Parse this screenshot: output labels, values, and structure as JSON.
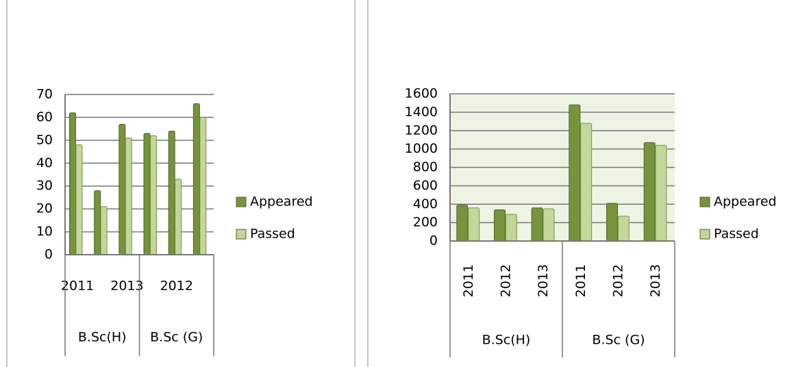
{
  "chart_data": [
    {
      "type": "bar",
      "categories": [
        "2011",
        null,
        "2013",
        null,
        "2012",
        null
      ],
      "groups": [
        "B.Sc(H)",
        "B.Sc (G)"
      ],
      "series": [
        {
          "name": "Appeared",
          "color": "#77933c",
          "values": [
            62,
            28,
            57,
            53,
            54,
            66
          ]
        },
        {
          "name": "Passed",
          "color": "#c3d69b",
          "values": [
            48,
            21,
            51,
            52,
            33,
            60
          ]
        }
      ],
      "ylim": [
        0,
        70
      ],
      "yticks": [
        0,
        10,
        20,
        30,
        40,
        50,
        60,
        70
      ],
      "grid": true,
      "legend": "right"
    },
    {
      "type": "bar",
      "categories": [
        "2011",
        "2012",
        "2013",
        "2011",
        "2012",
        "2013"
      ],
      "groups": [
        "B.Sc(H)",
        "B.Sc (G)"
      ],
      "series": [
        {
          "name": "Appeared",
          "color": "#77933c",
          "values": [
            390,
            340,
            360,
            1480,
            410,
            1070
          ]
        },
        {
          "name": "Passed",
          "color": "#c3d69b",
          "values": [
            360,
            290,
            350,
            1280,
            270,
            1040
          ]
        }
      ],
      "ylim": [
        0,
        1600
      ],
      "yticks": [
        0,
        200,
        400,
        600,
        800,
        1000,
        1200,
        1400,
        1600
      ],
      "grid": true,
      "legend": "right"
    }
  ]
}
